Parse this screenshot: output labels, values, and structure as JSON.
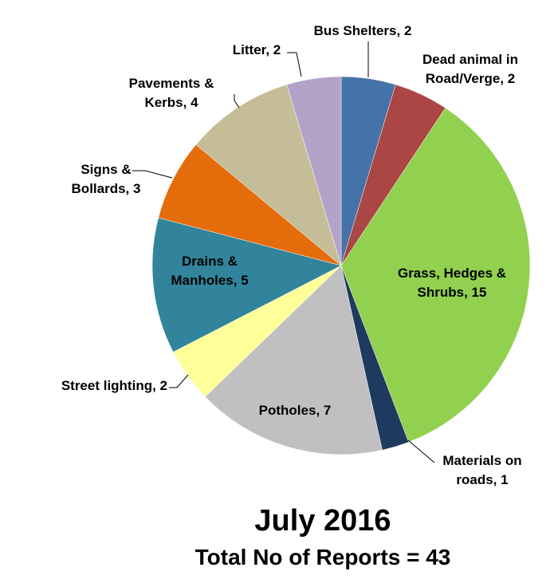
{
  "chart_data": {
    "type": "pie",
    "title": "July 2016",
    "subtitle": "Total No of Reports = 43",
    "values": [
      2,
      2,
      15,
      1,
      7,
      2,
      5,
      3,
      4,
      2
    ],
    "value_labels": [
      [
        "Bus Shelters, 2"
      ],
      [
        "Dead animal in",
        "Road/Verge, 2"
      ],
      [
        "Grass, Hedges &",
        "Shrubs, 15"
      ],
      [
        "Materials on",
        "roads, 1"
      ],
      [
        "Potholes, 7"
      ],
      [
        "Street lighting, 2"
      ],
      [
        "Drains &",
        "Manholes, 5"
      ],
      [
        "Signs &",
        "Bollards, 3"
      ],
      [
        "Pavements &",
        "Kerbs, 4"
      ],
      [
        "Litter, 2"
      ]
    ],
    "colors": [
      "#4572a7",
      "#aa4643",
      "#92d050",
      "#1f3a5f",
      "#c0c0c0",
      "#ffff99",
      "#31849b",
      "#e46c0a",
      "#c4bd97",
      "#b3a2c7"
    ]
  }
}
